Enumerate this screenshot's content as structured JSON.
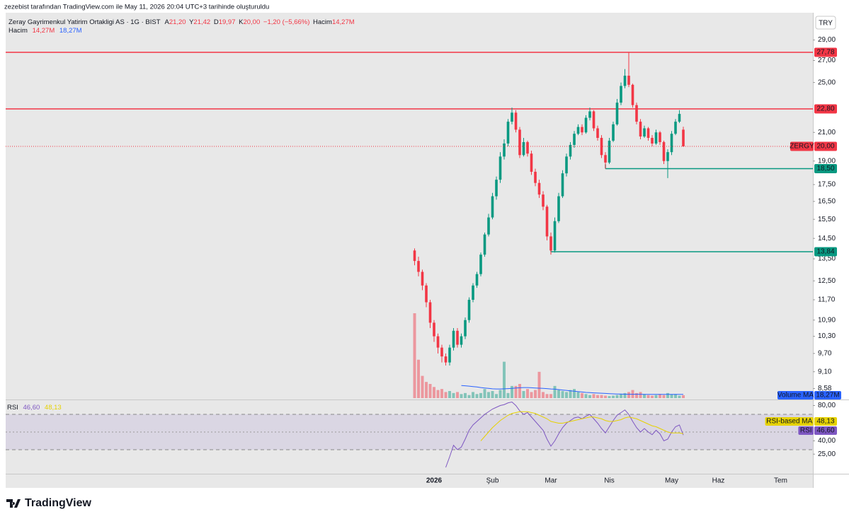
{
  "header": {
    "attribution": "zezebist tarafından TradingView.com ile May 11, 2026 20:04 UTC+3 tarihinde oluşturuldu",
    "symbol": "Zeray Gayrimenkul Yatirim Ortakligi AS · 1G · BIST",
    "ohlc": [
      {
        "label": "A",
        "value": "21,20"
      },
      {
        "label": "Y",
        "value": "21,42"
      },
      {
        "label": "D",
        "value": "19,97"
      },
      {
        "label": "K",
        "value": "20,00"
      }
    ],
    "change": "−1,20 (−5,66%)",
    "volume_label": "Hacim",
    "volume_value": "14,27M",
    "volume_legend": {
      "name": "Hacim",
      "values": [
        "14,27M",
        "18,27M"
      ]
    },
    "currency": "TRY"
  },
  "footer": {
    "logo": "TradingView"
  },
  "chart_data": [
    {
      "type": "candlestick",
      "log_scale": true,
      "grid": false,
      "up_color": "#089981",
      "down_color": "#f23645",
      "xlim": [
        -105,
        102.27
      ],
      "xticks": [
        {
          "value": 5,
          "label": "2026"
        },
        {
          "value": 20,
          "label": "Şub"
        },
        {
          "value": 35,
          "label": "Mar"
        },
        {
          "value": 50,
          "label": "Nis"
        },
        {
          "value": 66,
          "label": "May"
        },
        {
          "value": 78,
          "label": "Haz"
        },
        {
          "value": 94,
          "label": "Tem"
        }
      ],
      "ylim": [
        8.32,
        31.9
      ],
      "yticks": [
        {
          "value": 29,
          "label": "29,00"
        },
        {
          "value": 27,
          "label": "27,00"
        },
        {
          "value": 25,
          "label": "25,00"
        },
        {
          "value": 21,
          "label": "21,00"
        },
        {
          "value": 19,
          "label": "19,00"
        },
        {
          "value": 17.5,
          "label": "17,50"
        },
        {
          "value": 16.5,
          "label": "16,50"
        },
        {
          "value": 15.5,
          "label": "15,50"
        },
        {
          "value": 14.5,
          "label": "14,50"
        },
        {
          "value": 13.5,
          "label": "13,50"
        },
        {
          "value": 12.5,
          "label": "12,50"
        },
        {
          "value": 11.7,
          "label": "11,70"
        },
        {
          "value": 10.9,
          "label": "10,90"
        },
        {
          "value": 10.3,
          "label": "10,30"
        },
        {
          "value": 9.7,
          "label": "9,70"
        },
        {
          "value": 9.1,
          "label": "9,10"
        },
        {
          "value": 8.58,
          "label": "8,58"
        }
      ],
      "open": [
        13.9,
        13.4,
        12.9,
        12.3,
        11.6,
        10.8,
        10.3,
        9.9,
        9.6,
        9.4,
        9.9,
        10.5,
        10.0,
        10.3,
        10.9,
        11.7,
        12.3,
        12.8,
        13.7,
        14.7,
        15.6,
        16.8,
        17.8,
        19.3,
        20.2,
        21.8,
        22.5,
        21.2,
        19.4,
        20.3,
        19.5,
        18.3,
        17.6,
        16.9,
        16.2,
        14.6,
        13.9,
        15.4,
        16.8,
        18.2,
        19.3,
        20.1,
        20.9,
        21.4,
        21.0,
        22.1,
        22.6,
        21.3,
        20.6,
        19.4,
        18.9,
        20.4,
        21.6,
        23.3,
        24.7,
        25.6,
        24.8,
        23.1,
        21.8,
        20.7,
        21.3,
        20.6,
        20.2,
        21.0,
        20.3,
        19.0,
        19.6,
        20.9,
        21.8,
        21.2
      ],
      "high": [
        14.0,
        13.6,
        13.0,
        12.4,
        11.7,
        10.9,
        10.4,
        10.0,
        9.7,
        10.0,
        10.6,
        10.6,
        10.4,
        11.0,
        11.8,
        12.4,
        12.9,
        13.8,
        14.8,
        15.8,
        17.0,
        18.0,
        19.6,
        20.5,
        22.0,
        22.9,
        22.7,
        21.4,
        20.6,
        20.4,
        19.7,
        18.5,
        17.8,
        17.1,
        16.3,
        14.8,
        15.6,
        17.0,
        18.4,
        19.5,
        20.3,
        21.1,
        21.6,
        21.6,
        22.3,
        22.9,
        22.7,
        21.5,
        20.8,
        19.6,
        20.6,
        21.8,
        23.6,
        25.0,
        26.2,
        27.78,
        24.9,
        23.3,
        22.0,
        21.5,
        21.4,
        20.8,
        21.2,
        21.1,
        20.4,
        19.8,
        21.1,
        22.0,
        22.7,
        21.42
      ],
      "low": [
        13.2,
        12.7,
        12.1,
        11.4,
        10.6,
        10.1,
        9.7,
        9.4,
        9.3,
        9.3,
        9.8,
        9.9,
        9.9,
        10.2,
        10.8,
        11.6,
        12.2,
        12.7,
        13.6,
        14.6,
        15.5,
        16.6,
        17.6,
        19.1,
        20.0,
        21.6,
        21.0,
        19.2,
        19.3,
        19.3,
        18.1,
        17.4,
        16.7,
        16.0,
        14.4,
        13.7,
        13.8,
        15.3,
        16.7,
        18.0,
        19.1,
        19.9,
        20.8,
        20.8,
        20.9,
        21.9,
        21.1,
        20.4,
        19.2,
        18.5,
        18.8,
        20.3,
        21.5,
        23.1,
        24.5,
        24.6,
        22.9,
        21.6,
        20.5,
        20.6,
        20.4,
        20.0,
        20.1,
        20.1,
        18.8,
        17.9,
        19.4,
        20.8,
        21.7,
        19.97
      ],
      "close": [
        13.4,
        12.9,
        12.3,
        11.6,
        10.8,
        10.3,
        9.9,
        9.6,
        9.4,
        9.9,
        10.5,
        10.0,
        10.3,
        10.9,
        11.7,
        12.3,
        12.8,
        13.7,
        14.7,
        15.6,
        16.8,
        17.8,
        19.3,
        20.2,
        21.8,
        22.5,
        21.2,
        19.4,
        20.3,
        19.5,
        18.3,
        17.6,
        16.9,
        16.2,
        14.6,
        13.9,
        15.4,
        16.8,
        18.2,
        19.3,
        20.1,
        20.9,
        21.4,
        21.0,
        22.1,
        22.6,
        21.3,
        20.6,
        19.4,
        18.9,
        20.4,
        21.6,
        23.3,
        24.7,
        25.6,
        24.8,
        23.1,
        21.8,
        20.7,
        21.3,
        20.6,
        20.2,
        21.0,
        20.3,
        19.0,
        19.6,
        20.9,
        21.8,
        22.4,
        20.0
      ],
      "volume": [
        420,
        190,
        110,
        80,
        70,
        55,
        40,
        45,
        30,
        35,
        25,
        30,
        20,
        25,
        15,
        30,
        20,
        25,
        45,
        30,
        35,
        20,
        40,
        180,
        25,
        60,
        60,
        70,
        35,
        45,
        30,
        40,
        130,
        30,
        20,
        20,
        60,
        40,
        35,
        30,
        40,
        45,
        30,
        25,
        20,
        15,
        20,
        15,
        15,
        12,
        10,
        12,
        15,
        20,
        25,
        30,
        40,
        25,
        30,
        20,
        15,
        12,
        15,
        20,
        15,
        25,
        18,
        20,
        12,
        14.27
      ],
      "volume_ma": {
        "name": "Volume MA",
        "color": "#2962ff",
        "last_label": "18,27M",
        "values": [
          null,
          null,
          null,
          null,
          null,
          null,
          null,
          null,
          null,
          null,
          null,
          null,
          62,
          61,
          59,
          57,
          55,
          52,
          50,
          48,
          46,
          45,
          45,
          46,
          47,
          48,
          50,
          51,
          52,
          52,
          51,
          50,
          49,
          48,
          47,
          45,
          44,
          42,
          40,
          38,
          36,
          34,
          32,
          30,
          28,
          27,
          26,
          25,
          24,
          23,
          22,
          21,
          20,
          20,
          19,
          19,
          19,
          18.8,
          18.6,
          18.5,
          18.4,
          18.3,
          18.3,
          18.2,
          18.2,
          18.3,
          18.3,
          18.3,
          18.3,
          18.27
        ]
      },
      "levels": [
        {
          "value": 27.78,
          "label": "27,78",
          "color": "#f23645"
        },
        {
          "value": 22.8,
          "label": "22,80",
          "color": "#f23645"
        },
        {
          "value": 18.5,
          "label": "18,50",
          "color": "#089981",
          "from": 49
        },
        {
          "value": 13.84,
          "label": "13,84",
          "color": "#089981",
          "from": 35
        }
      ],
      "last_price": {
        "value": 20,
        "label": "20,00",
        "symbol": "ZERGY",
        "color": "#f23645"
      }
    },
    {
      "type": "line",
      "title": "RSI",
      "xlim": [
        -105,
        102.27
      ],
      "ylim": [
        4.4,
        84.4
      ],
      "yticks": [
        {
          "value": 80,
          "label": "80,00"
        },
        {
          "value": 40,
          "label": "40,00"
        },
        {
          "value": 25,
          "label": "25,00"
        }
      ],
      "band": [
        30,
        70
      ],
      "midline": 50,
      "band_color": "#7e57c2",
      "series": [
        {
          "name": "RSI",
          "color": "#7e57c2",
          "last_label": "46,60",
          "values": [
            null,
            null,
            null,
            null,
            null,
            null,
            null,
            null,
            10,
            22,
            35,
            30,
            33,
            42,
            52,
            58,
            62,
            66,
            70,
            73,
            76,
            78,
            80,
            81,
            83,
            84,
            80,
            74,
            70,
            72,
            67,
            62,
            57,
            52,
            42,
            34,
            40,
            48,
            55,
            60,
            63,
            66,
            67,
            65,
            68,
            70,
            65,
            60,
            54,
            49,
            56,
            63,
            69,
            72,
            75,
            70,
            62,
            55,
            50,
            54,
            50,
            47,
            52,
            48,
            40,
            42,
            50,
            56,
            58,
            46.6
          ]
        },
        {
          "name": "RSI-based MA",
          "color": "#e6d200",
          "last_label": "48,13",
          "values": [
            null,
            null,
            null,
            null,
            null,
            null,
            null,
            null,
            null,
            null,
            null,
            null,
            null,
            null,
            null,
            null,
            null,
            40,
            45,
            50,
            55,
            59,
            63,
            66,
            69,
            71,
            72,
            73,
            73,
            73,
            72,
            71,
            69,
            67,
            65,
            62,
            61,
            60,
            60,
            61,
            62,
            63,
            64,
            65,
            66,
            67,
            67,
            66,
            65,
            63,
            62,
            62,
            63,
            64,
            66,
            67,
            66,
            65,
            63,
            61,
            59,
            57,
            56,
            54,
            52,
            50,
            49,
            49,
            49,
            48.13
          ]
        }
      ]
    }
  ]
}
